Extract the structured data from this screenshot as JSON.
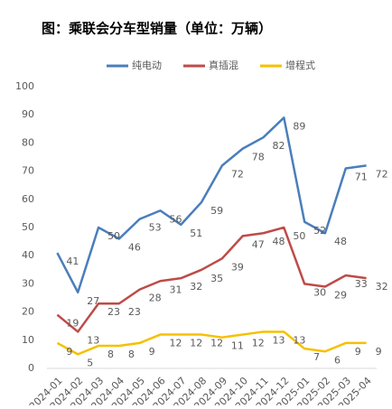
{
  "chart_data": {
    "type": "line",
    "title": "图：乘联会分车型销量（单位：万辆）",
    "categories": [
      "2024-01",
      "2024-02",
      "2024-03",
      "2024-04",
      "2024-05",
      "2024-06",
      "2024-07",
      "2024-08",
      "2024-09",
      "2024-10",
      "2024-11",
      "2024-12",
      "2025-01",
      "2025-02",
      "2025-03",
      "2025-04"
    ],
    "series": [
      {
        "name": "纯电动",
        "color": "#4a7ebb",
        "values": [
          41,
          27,
          50,
          46,
          53,
          56,
          51,
          59,
          72,
          78,
          82,
          89,
          52,
          48,
          71,
          72
        ]
      },
      {
        "name": "真插混",
        "color": "#be4b48",
        "values": [
          19,
          13,
          23,
          23,
          28,
          31,
          32,
          35,
          39,
          47,
          48,
          50,
          30,
          29,
          33,
          32
        ]
      },
      {
        "name": "增程式",
        "color": "#f6c000",
        "values": [
          9,
          5,
          8,
          8,
          9,
          12,
          12,
          12,
          11,
          12,
          13,
          13,
          7,
          6,
          9,
          9
        ]
      }
    ],
    "ylim": [
      0,
      100
    ],
    "yticks": [
      0,
      10,
      20,
      30,
      40,
      50,
      60,
      70,
      80,
      90,
      100
    ],
    "legend": "top"
  }
}
